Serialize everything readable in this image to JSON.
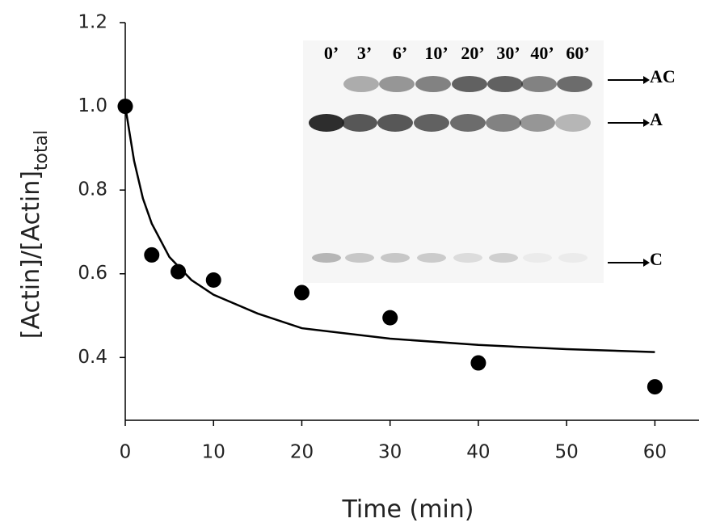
{
  "chart_data": {
    "type": "scatter",
    "x_label": "Time (min)",
    "y_label": "[Actin]/[Actin]",
    "y_label_sub": "total",
    "xlim": [
      0,
      65
    ],
    "xticks": [
      0,
      10,
      20,
      30,
      40,
      50,
      60
    ],
    "ylim": [
      0.25,
      1.2
    ],
    "yticks": [
      0.4,
      0.6,
      0.8,
      {
        "value": 1,
        "label": "1.0"
      },
      1.2
    ],
    "series": [
      {
        "mode": "markers",
        "color": "#000000",
        "x": [
          0,
          3,
          6,
          10,
          20,
          30,
          40,
          60
        ],
        "values": [
          1.0,
          0.645,
          0.605,
          0.585,
          0.555,
          0.495,
          0.387,
          0.33
        ]
      },
      {
        "mode": "line",
        "color": "#000000",
        "x": [
          0,
          1,
          2,
          3,
          5,
          7.5,
          10,
          15,
          20,
          30,
          40,
          50,
          60
        ],
        "values": [
          1.0,
          0.87,
          0.78,
          0.72,
          0.64,
          0.585,
          0.55,
          0.505,
          0.47,
          0.445,
          0.43,
          0.42,
          0.413
        ]
      }
    ],
    "gel": {
      "lanes": [
        "0’",
        "3’",
        "6’",
        "10’",
        "20’",
        "30’",
        "40’",
        "60’"
      ],
      "bands": [
        "AC",
        "A",
        "C"
      ]
    }
  }
}
